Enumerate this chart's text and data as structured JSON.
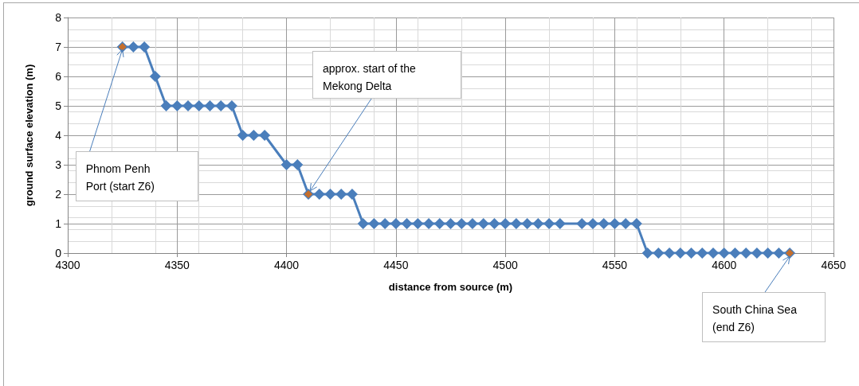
{
  "chart_data": {
    "type": "line",
    "xlabel": "distance from source (m)",
    "ylabel": "ground surface elevation (m)",
    "xlim": [
      4300,
      4650
    ],
    "xticks": [
      4300,
      4350,
      4400,
      4450,
      4500,
      4550,
      4600,
      4650
    ],
    "ylim": [
      0,
      8
    ],
    "yticks": [
      0,
      1,
      2,
      3,
      4,
      5,
      6,
      7,
      8
    ],
    "grid": true,
    "marker": "diamond",
    "line_style": "solid",
    "series": [
      {
        "color": "#4a7ebb",
        "x": [
          4325,
          4330,
          4335,
          4340,
          4345,
          4350,
          4355,
          4360,
          4365,
          4370,
          4375,
          4380,
          4385,
          4390,
          4400,
          4405,
          4410,
          4415,
          4420,
          4425,
          4430,
          4435,
          4440,
          4445,
          4450,
          4455,
          4460,
          4465,
          4470,
          4475,
          4480,
          4485,
          4490,
          4495,
          4500,
          4505,
          4510,
          4515,
          4520,
          4525,
          4535,
          4540,
          4545,
          4550,
          4555,
          4560,
          4565,
          4570,
          4575,
          4580,
          4585,
          4590,
          4595,
          4600,
          4605,
          4610,
          4615,
          4620,
          4625,
          4630
        ],
        "values": [
          7,
          7,
          7,
          6,
          5,
          5,
          5,
          5,
          5,
          5,
          5,
          4,
          4,
          4,
          3,
          3,
          2,
          2,
          2,
          2,
          2,
          1,
          1,
          1,
          1,
          1,
          1,
          1,
          1,
          1,
          1,
          1,
          1,
          1,
          1,
          1,
          1,
          1,
          1,
          1,
          1,
          1,
          1,
          1,
          1,
          1,
          0,
          0,
          0,
          0,
          0,
          0,
          0,
          0,
          0,
          0,
          0,
          0,
          0,
          0
        ]
      },
      {
        "type": "scatter",
        "color": "#e46c0a",
        "x": [
          4325,
          4410,
          4630
        ],
        "values": [
          7,
          2,
          0
        ]
      }
    ],
    "annotations": [
      {
        "text": "Phnom Penh Port (start Z6)",
        "x": 4325,
        "y": 7
      },
      {
        "text": "approx. start of the Mekong Delta",
        "x": 4410,
        "y": 2
      },
      {
        "text": "South China Sea (end Z6)",
        "x": 4630,
        "y": 0
      }
    ]
  }
}
